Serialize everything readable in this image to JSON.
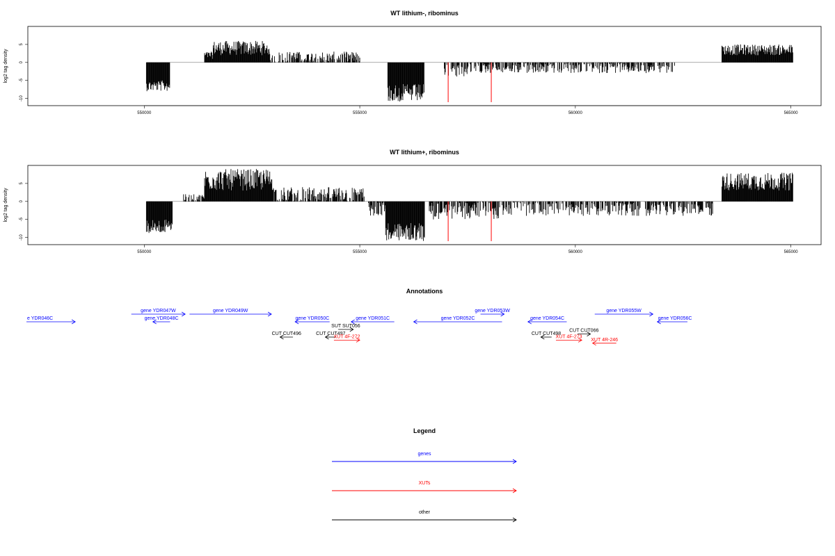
{
  "colors": {
    "genes": "#0000ff",
    "xuts": "#ff0000",
    "other": "#000000",
    "signal": "#000000",
    "marker": "#ff0000"
  },
  "chart_data": [
    {
      "type": "bar",
      "title": "WT lithium-, ribominus",
      "ylabel": "log2 tag density",
      "xlim": [
        547300,
        565700
      ],
      "ylim": [
        -12,
        10
      ],
      "x_ticks": [
        550000,
        555000,
        560000,
        565000
      ],
      "y_ticks": [
        5,
        0,
        -5,
        -10
      ],
      "markers_x": [
        557050,
        558050
      ],
      "regions": [
        {
          "x_range": [
            550050,
            550600
          ],
          "sign": -1,
          "amp": [
            5,
            8
          ]
        },
        {
          "x_range": [
            551400,
            551600
          ],
          "sign": 1,
          "amp": [
            1,
            3
          ]
        },
        {
          "x_range": [
            551600,
            552900
          ],
          "sign": 1,
          "amp": [
            2,
            6
          ]
        },
        {
          "x_range": [
            552900,
            555000
          ],
          "sign": 1,
          "amp": [
            0,
            3
          ]
        },
        {
          "x_range": [
            555650,
            556500
          ],
          "sign": -1,
          "amp": [
            6,
            11
          ]
        },
        {
          "x_range": [
            556900,
            557800
          ],
          "sign": -1,
          "amp": [
            0,
            4
          ]
        },
        {
          "x_range": [
            557800,
            562300
          ],
          "sign": -1,
          "amp": [
            0,
            3
          ]
        },
        {
          "x_range": [
            563400,
            565050
          ],
          "sign": 1,
          "amp": [
            2,
            5
          ]
        }
      ]
    },
    {
      "type": "bar",
      "title": "WT lithium+, ribominus",
      "ylabel": "log2 tag density",
      "xlim": [
        547300,
        565700
      ],
      "ylim": [
        -12,
        10
      ],
      "x_ticks": [
        550000,
        555000,
        560000,
        565000
      ],
      "y_ticks": [
        5,
        0,
        -5,
        -10
      ],
      "markers_x": [
        557050,
        558050
      ],
      "regions": [
        {
          "x_range": [
            550050,
            550650
          ],
          "sign": -1,
          "amp": [
            5,
            9
          ]
        },
        {
          "x_range": [
            550900,
            551400
          ],
          "sign": 1,
          "amp": [
            0,
            2
          ]
        },
        {
          "x_range": [
            551400,
            553000
          ],
          "sign": 1,
          "amp": [
            3,
            9
          ]
        },
        {
          "x_range": [
            553000,
            555100
          ],
          "sign": 1,
          "amp": [
            0,
            4
          ]
        },
        {
          "x_range": [
            555200,
            555600
          ],
          "sign": -1,
          "amp": [
            0,
            4
          ]
        },
        {
          "x_range": [
            555600,
            556500
          ],
          "sign": -1,
          "amp": [
            6,
            11
          ]
        },
        {
          "x_range": [
            556600,
            558300
          ],
          "sign": -1,
          "amp": [
            0,
            5
          ]
        },
        {
          "x_range": [
            558300,
            563200
          ],
          "sign": -1,
          "amp": [
            0,
            4
          ]
        },
        {
          "x_range": [
            563400,
            565050
          ],
          "sign": 1,
          "amp": [
            3,
            8
          ]
        }
      ]
    }
  ],
  "annotations": {
    "title": "Annotations",
    "xlim": [
      547300,
      565700
    ],
    "features": [
      {
        "label": "e YDR046C",
        "type": "genes",
        "start": 547250,
        "end": 548400,
        "dir": "right",
        "row": 0,
        "label_pos": "left"
      },
      {
        "label": "gene YDR047W",
        "type": "genes",
        "start": 549700,
        "end": 550950,
        "dir": "right",
        "row": -1,
        "label_pos": "center"
      },
      {
        "label": "gene YDR048C",
        "type": "genes",
        "start": 550200,
        "end": 550600,
        "dir": "left",
        "row": 0,
        "label_pos": "center"
      },
      {
        "label": "gene YDR049W",
        "type": "genes",
        "start": 551050,
        "end": 552950,
        "dir": "right",
        "row": -1,
        "label_pos": "center"
      },
      {
        "label": "gene YDR050C",
        "type": "genes",
        "start": 553500,
        "end": 554300,
        "dir": "left",
        "row": 0,
        "label_pos": "center"
      },
      {
        "label": "gene YDR051C",
        "type": "genes",
        "start": 554800,
        "end": 555800,
        "dir": "left",
        "row": 0,
        "label_pos": "center"
      },
      {
        "label": "gene YDR052C",
        "type": "genes",
        "start": 556250,
        "end": 558300,
        "dir": "left",
        "row": 0,
        "label_pos": "center"
      },
      {
        "label": "gene YDR053W",
        "type": "genes",
        "start": 557800,
        "end": 558350,
        "dir": "right",
        "row": -1,
        "label_pos": "center"
      },
      {
        "label": "gene YDR054C",
        "type": "genes",
        "start": 558900,
        "end": 559800,
        "dir": "left",
        "row": 0,
        "label_pos": "center"
      },
      {
        "label": "gene YDR055W",
        "type": "genes",
        "start": 560450,
        "end": 561800,
        "dir": "right",
        "row": -1,
        "label_pos": "center"
      },
      {
        "label": "gene YDR056C",
        "type": "genes",
        "start": 561900,
        "end": 562600,
        "dir": "left",
        "row": 0,
        "label_pos": "left"
      },
      {
        "label": "SUT SUT056",
        "type": "other",
        "start": 554500,
        "end": 554850,
        "dir": "right",
        "row": 1,
        "label_pos": "center"
      },
      {
        "label": "CUT CUT496",
        "type": "other",
        "start": 553150,
        "end": 553450,
        "dir": "left",
        "row": 2,
        "label_pos": "center"
      },
      {
        "label": "CUT CUT497",
        "type": "other",
        "start": 554200,
        "end": 554450,
        "dir": "left",
        "row": 2,
        "label_pos": "center"
      },
      {
        "label": "XUT 4F-272",
        "type": "xuts",
        "start": 554400,
        "end": 555000,
        "dir": "right",
        "row": 2.4,
        "label_pos": "center"
      },
      {
        "label": "CUT CUT498",
        "type": "other",
        "start": 559200,
        "end": 559450,
        "dir": "left",
        "row": 2,
        "label_pos": "center"
      },
      {
        "label": "CUT CUT066",
        "type": "other",
        "start": 560050,
        "end": 560350,
        "dir": "right",
        "row": 1.6,
        "label_pos": "center"
      },
      {
        "label": "XUT 4F-273",
        "type": "xuts",
        "start": 559550,
        "end": 560150,
        "dir": "right",
        "row": 2.4,
        "label_pos": "center"
      },
      {
        "label": "XUT 4R-246",
        "type": "xuts",
        "start": 560400,
        "end": 560950,
        "dir": "left",
        "row": 2.8,
        "label_pos": "center"
      }
    ]
  },
  "legend": {
    "title": "Legend",
    "items": [
      {
        "label": "genes",
        "type": "genes"
      },
      {
        "label": "XUTs",
        "type": "xuts"
      },
      {
        "label": "other",
        "type": "other"
      }
    ]
  }
}
